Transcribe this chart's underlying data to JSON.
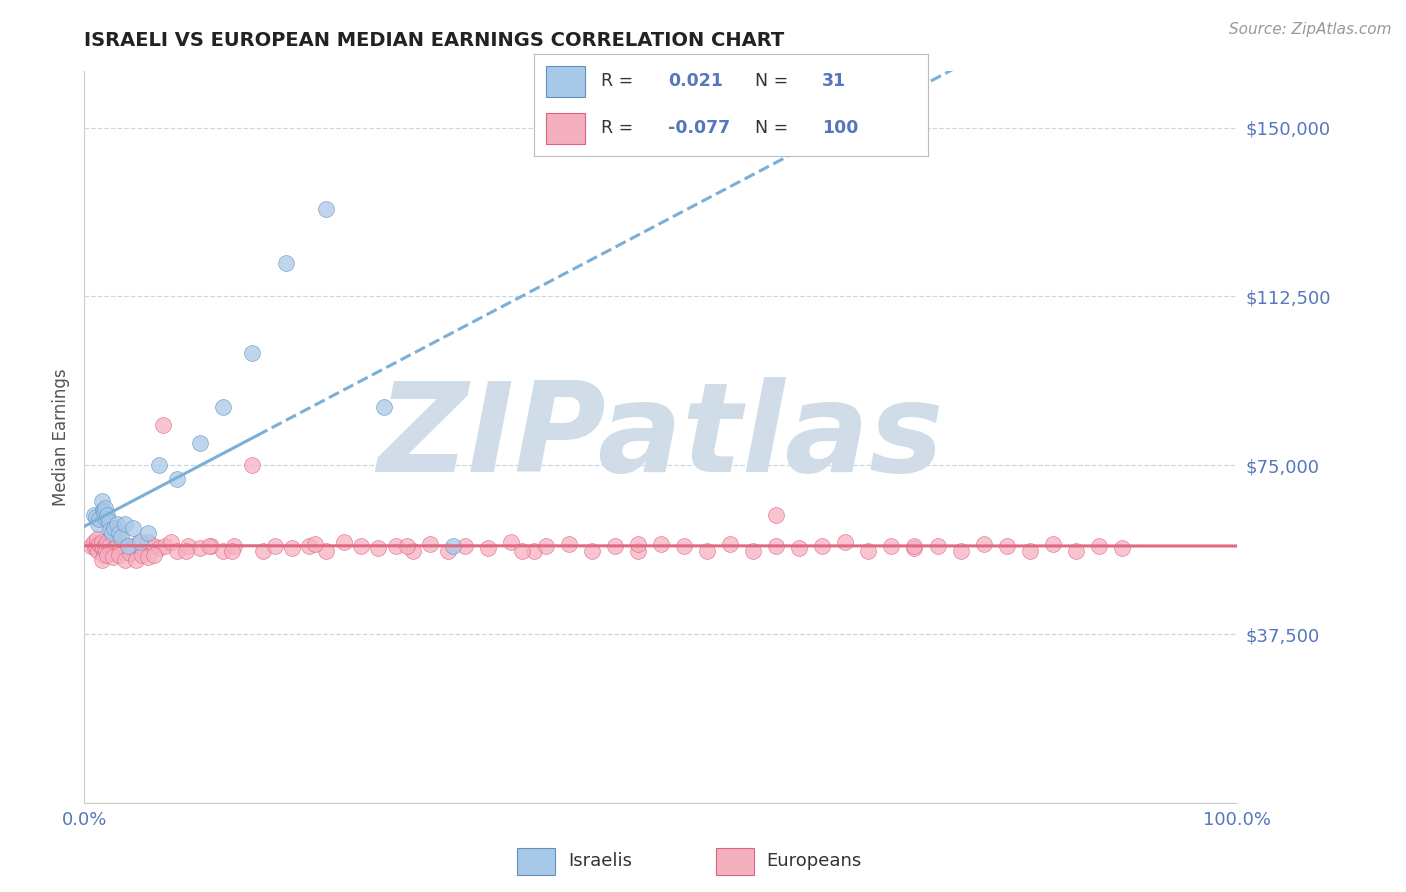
{
  "title": "ISRAELI VS EUROPEAN MEDIAN EARNINGS CORRELATION CHART",
  "source": "Source: ZipAtlas.com",
  "ylabel": "Median Earnings",
  "xlim": [
    0,
    1.0
  ],
  "ylim": [
    0,
    162500
  ],
  "yticks": [
    0,
    37500,
    75000,
    112500,
    150000
  ],
  "gridline_color": "#c8d8e8",
  "background_color": "#ffffff",
  "israeli_color": "#a8c8e8",
  "european_color": "#f5b0c0",
  "israeli_edge": "#6090c0",
  "european_edge": "#e06080",
  "trend_israeli_color": "#7ab0d8",
  "trend_european_color": "#e06880",
  "R_israeli": 0.021,
  "N_israeli": 31,
  "R_european": -0.077,
  "N_european": 100,
  "title_color": "#222222",
  "axis_label_color": "#5577bb",
  "watermark": "ZIPatlas",
  "watermark_color": "#d0dde8",
  "israelis_x": [
    0.008,
    0.01,
    0.012,
    0.013,
    0.015,
    0.016,
    0.017,
    0.018,
    0.019,
    0.02,
    0.021,
    0.022,
    0.024,
    0.026,
    0.028,
    0.03,
    0.032,
    0.035,
    0.038,
    0.042,
    0.048,
    0.055,
    0.065,
    0.08,
    0.1,
    0.12,
    0.145,
    0.175,
    0.21,
    0.26,
    0.32
  ],
  "israelis_y": [
    64000,
    63500,
    62000,
    63000,
    67000,
    65000,
    64500,
    65500,
    63000,
    64000,
    62500,
    60500,
    60000,
    61000,
    62000,
    60000,
    59000,
    62000,
    57000,
    61000,
    58000,
    60000,
    75000,
    72000,
    80000,
    88000,
    100000,
    120000,
    132000,
    88000,
    57000
  ],
  "europeans_x": [
    0.006,
    0.008,
    0.009,
    0.01,
    0.011,
    0.012,
    0.013,
    0.014,
    0.015,
    0.016,
    0.017,
    0.018,
    0.019,
    0.02,
    0.021,
    0.022,
    0.024,
    0.026,
    0.028,
    0.03,
    0.032,
    0.035,
    0.038,
    0.042,
    0.046,
    0.05,
    0.055,
    0.06,
    0.065,
    0.07,
    0.075,
    0.08,
    0.09,
    0.1,
    0.11,
    0.12,
    0.13,
    0.145,
    0.155,
    0.165,
    0.18,
    0.195,
    0.21,
    0.225,
    0.24,
    0.255,
    0.27,
    0.285,
    0.3,
    0.315,
    0.33,
    0.35,
    0.37,
    0.39,
    0.4,
    0.42,
    0.44,
    0.46,
    0.48,
    0.5,
    0.52,
    0.54,
    0.56,
    0.58,
    0.6,
    0.62,
    0.64,
    0.66,
    0.68,
    0.7,
    0.72,
    0.74,
    0.76,
    0.78,
    0.8,
    0.82,
    0.84,
    0.86,
    0.88,
    0.9,
    0.068,
    0.088,
    0.108,
    0.128,
    0.2,
    0.28,
    0.38,
    0.48,
    0.6,
    0.72,
    0.015,
    0.02,
    0.025,
    0.03,
    0.035,
    0.04,
    0.045,
    0.05,
    0.055,
    0.06
  ],
  "europeans_y": [
    57000,
    58000,
    56500,
    57000,
    58500,
    56000,
    57500,
    57000,
    58000,
    56500,
    55000,
    57000,
    56000,
    58000,
    57000,
    56000,
    55500,
    56500,
    57000,
    56000,
    57000,
    56500,
    57000,
    56000,
    57500,
    56000,
    58000,
    57000,
    56500,
    57000,
    58000,
    56000,
    57000,
    56500,
    57000,
    56000,
    57000,
    75000,
    56000,
    57000,
    56500,
    57000,
    56000,
    58000,
    57000,
    56500,
    57000,
    56000,
    57500,
    56000,
    57000,
    56500,
    58000,
    56000,
    57000,
    57500,
    56000,
    57000,
    56000,
    57500,
    57000,
    56000,
    57500,
    56000,
    57000,
    56500,
    57000,
    58000,
    56000,
    57000,
    56500,
    57000,
    56000,
    57500,
    57000,
    56000,
    57500,
    56000,
    57000,
    56500,
    84000,
    56000,
    57000,
    56000,
    57500,
    57000,
    56000,
    57500,
    64000,
    57000,
    54000,
    55000,
    54500,
    55000,
    54000,
    55500,
    54000,
    55000,
    54500,
    55000
  ]
}
